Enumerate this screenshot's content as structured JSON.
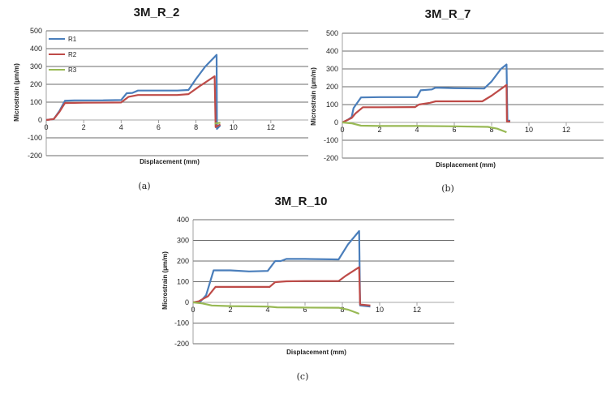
{
  "colors": {
    "R1": "#4a7ebb",
    "R2": "#be4b48",
    "R3": "#98b954"
  },
  "chart_data": [
    {
      "type": "line",
      "title": "3M_R_2",
      "xlabel": "Displacement (mm)",
      "ylabel": "Microstrain (µm/m)",
      "xlim": [
        0,
        14
      ],
      "ylim": [
        -200,
        500
      ],
      "xticks": [
        0,
        2,
        4,
        6,
        8,
        10,
        12
      ],
      "yticks": [
        500,
        400,
        300,
        200,
        100,
        0,
        -100,
        -200
      ],
      "legend": [
        "R1",
        "R2",
        "R3"
      ],
      "legend_position": "top-left",
      "caption": "(a)",
      "series": [
        {
          "name": "R1",
          "points": [
            [
              0,
              0
            ],
            [
              0.4,
              5
            ],
            [
              0.7,
              50
            ],
            [
              1.0,
              108
            ],
            [
              1.5,
              110
            ],
            [
              3.0,
              110
            ],
            [
              4.0,
              112
            ],
            [
              4.3,
              150
            ],
            [
              4.6,
              152
            ],
            [
              4.9,
              165
            ],
            [
              6.0,
              165
            ],
            [
              7.0,
              165
            ],
            [
              7.6,
              168
            ],
            [
              8.0,
              230
            ],
            [
              8.5,
              300
            ],
            [
              9.1,
              365
            ],
            [
              9.12,
              -50
            ],
            [
              9.3,
              -30
            ]
          ]
        },
        {
          "name": "R2",
          "points": [
            [
              0,
              0
            ],
            [
              0.4,
              5
            ],
            [
              0.7,
              45
            ],
            [
              1.0,
              95
            ],
            [
              2.0,
              97
            ],
            [
              4.0,
              98
            ],
            [
              4.4,
              130
            ],
            [
              4.9,
              140
            ],
            [
              7.0,
              140
            ],
            [
              7.6,
              145
            ],
            [
              8.2,
              190
            ],
            [
              9.0,
              245
            ],
            [
              9.05,
              -40
            ],
            [
              9.3,
              -25
            ]
          ]
        },
        {
          "name": "R3",
          "points": [
            [
              9.0,
              -20
            ],
            [
              9.3,
              -15
            ]
          ]
        }
      ]
    },
    {
      "type": "line",
      "title": "3M_R_7",
      "xlabel": "Displacement (mm)",
      "ylabel": "Microstrain (µm/m)",
      "xlim": [
        0,
        14
      ],
      "ylim": [
        -200,
        500
      ],
      "xticks": [
        0,
        2,
        4,
        6,
        8,
        10,
        12
      ],
      "yticks": [
        500,
        400,
        300,
        200,
        100,
        0,
        -100,
        -200
      ],
      "caption": "(b)",
      "series": [
        {
          "name": "R1",
          "points": [
            [
              0,
              0
            ],
            [
              0.3,
              15
            ],
            [
              0.5,
              30
            ],
            [
              0.6,
              80
            ],
            [
              1.0,
              140
            ],
            [
              2.0,
              142
            ],
            [
              4.0,
              142
            ],
            [
              4.2,
              180
            ],
            [
              4.8,
              185
            ],
            [
              5.0,
              195
            ],
            [
              6.0,
              192
            ],
            [
              7.6,
              190
            ],
            [
              8.0,
              230
            ],
            [
              8.5,
              300
            ],
            [
              8.8,
              325
            ],
            [
              8.85,
              10
            ],
            [
              9.0,
              10
            ]
          ]
        },
        {
          "name": "R2",
          "points": [
            [
              0,
              0
            ],
            [
              0.5,
              25
            ],
            [
              0.7,
              50
            ],
            [
              1.1,
              85
            ],
            [
              2.0,
              85
            ],
            [
              3.9,
              86
            ],
            [
              4.1,
              100
            ],
            [
              4.7,
              110
            ],
            [
              5.0,
              118
            ],
            [
              6.0,
              118
            ],
            [
              7.5,
              118
            ],
            [
              8.0,
              150
            ],
            [
              8.8,
              210
            ],
            [
              8.82,
              5
            ],
            [
              9.0,
              5
            ]
          ]
        },
        {
          "name": "R3",
          "points": [
            [
              0,
              0
            ],
            [
              0.5,
              -5
            ],
            [
              1.0,
              -18
            ],
            [
              2.0,
              -20
            ],
            [
              4.0,
              -20
            ],
            [
              6.0,
              -22
            ],
            [
              7.8,
              -25
            ],
            [
              8.3,
              -35
            ],
            [
              8.8,
              -55
            ]
          ]
        }
      ]
    },
    {
      "type": "line",
      "title": "3M_R_10",
      "xlabel": "Displacement (mm)",
      "ylabel": "Microstrain (µm/m)",
      "xlim": [
        0,
        14
      ],
      "ylim": [
        -200,
        400
      ],
      "xticks": [
        0,
        2,
        4,
        6,
        8,
        10,
        12
      ],
      "yticks": [
        400,
        300,
        200,
        100,
        0,
        -100,
        -200
      ],
      "caption": "(c)",
      "series": [
        {
          "name": "R1",
          "points": [
            [
              0,
              0
            ],
            [
              0.4,
              5
            ],
            [
              0.7,
              35
            ],
            [
              1.1,
              155
            ],
            [
              2.0,
              155
            ],
            [
              3.0,
              150
            ],
            [
              4.0,
              152
            ],
            [
              4.4,
              200
            ],
            [
              4.7,
              200
            ],
            [
              5.0,
              210
            ],
            [
              6.0,
              210
            ],
            [
              7.8,
              208
            ],
            [
              8.3,
              280
            ],
            [
              8.9,
              345
            ],
            [
              8.95,
              -15
            ],
            [
              9.5,
              -20
            ]
          ]
        },
        {
          "name": "R2",
          "points": [
            [
              0,
              0
            ],
            [
              0.3,
              5
            ],
            [
              0.8,
              30
            ],
            [
              1.2,
              75
            ],
            [
              2.0,
              75
            ],
            [
              4.1,
              75
            ],
            [
              4.4,
              98
            ],
            [
              5.0,
              102
            ],
            [
              6.0,
              103
            ],
            [
              7.8,
              103
            ],
            [
              8.2,
              130
            ],
            [
              8.9,
              170
            ],
            [
              8.95,
              -10
            ],
            [
              9.5,
              -15
            ]
          ]
        },
        {
          "name": "R3",
          "points": [
            [
              0,
              0
            ],
            [
              0.5,
              -5
            ],
            [
              1.0,
              -15
            ],
            [
              2.0,
              -18
            ],
            [
              4.0,
              -20
            ],
            [
              4.5,
              -24
            ],
            [
              6.0,
              -25
            ],
            [
              7.8,
              -26
            ],
            [
              8.3,
              -35
            ],
            [
              8.9,
              -55
            ]
          ]
        }
      ]
    }
  ]
}
